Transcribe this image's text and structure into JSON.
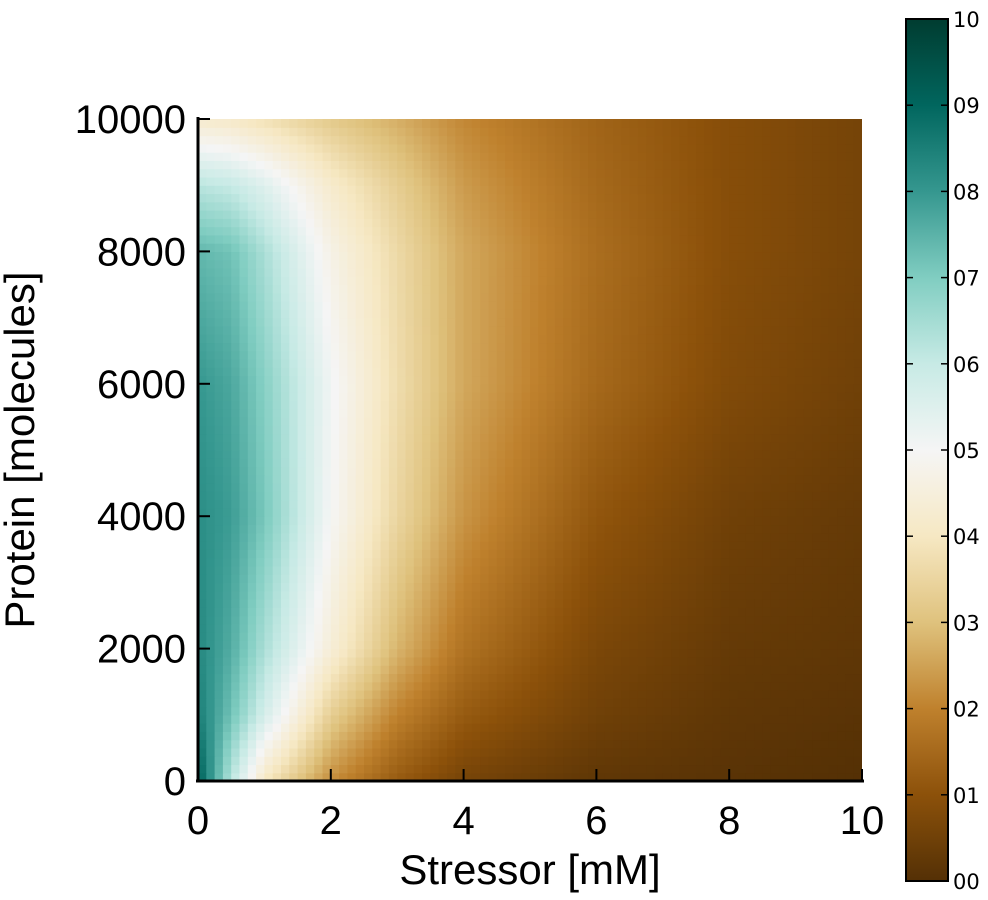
{
  "chart_data": {
    "type": "heatmap",
    "title": "",
    "xlabel": "Stressor [mM]",
    "ylabel": "Protein [molecules]",
    "xlim": [
      0,
      10
    ],
    "ylim": [
      0,
      10000
    ],
    "x_ticks": [
      0,
      2,
      4,
      6,
      8,
      10
    ],
    "y_ticks": [
      0,
      2000,
      4000,
      6000,
      8000,
      10000
    ],
    "x_tick_labels": [
      "0",
      "2",
      "4",
      "6",
      "8",
      "10"
    ],
    "y_tick_labels": [
      "0",
      "2000",
      "4000",
      "6000",
      "8000",
      "10000"
    ],
    "grid": false,
    "colormap": "BrBG",
    "colormap_stops": [
      "#543005",
      "#8c510a",
      "#bf812d",
      "#dfc27d",
      "#f6e8c3",
      "#f5f5f5",
      "#c7eae5",
      "#80cdc1",
      "#35978f",
      "#01665e",
      "#003c30"
    ],
    "colorbar": {
      "position": "right",
      "range": [
        0,
        1
      ],
      "ticks": [
        0,
        0.1,
        0.2,
        0.3,
        0.4,
        0.5,
        0.6,
        0.7,
        0.8,
        0.9,
        1.0
      ],
      "tick_labels": [
        "00",
        "01",
        "02",
        "03",
        "04",
        "05",
        "06",
        "07",
        "08",
        "09",
        "10"
      ]
    },
    "x_samples": [
      0,
      0.5,
      1,
      2,
      3,
      4,
      6,
      8,
      10
    ],
    "y_samples": [
      0,
      1000,
      2000,
      4000,
      6000,
      8000,
      9000,
      10000
    ],
    "z": [
      [
        0.92,
        0.62,
        0.4,
        0.22,
        0.12,
        0.06,
        0.02,
        0.01,
        0.0
      ],
      [
        0.85,
        0.72,
        0.57,
        0.33,
        0.2,
        0.12,
        0.05,
        0.02,
        0.01
      ],
      [
        0.83,
        0.76,
        0.64,
        0.44,
        0.28,
        0.17,
        0.07,
        0.03,
        0.02
      ],
      [
        0.82,
        0.79,
        0.71,
        0.5,
        0.35,
        0.23,
        0.11,
        0.05,
        0.03
      ],
      [
        0.8,
        0.77,
        0.69,
        0.51,
        0.37,
        0.26,
        0.15,
        0.08,
        0.05
      ],
      [
        0.74,
        0.72,
        0.64,
        0.47,
        0.36,
        0.26,
        0.16,
        0.09,
        0.06
      ],
      [
        0.62,
        0.6,
        0.55,
        0.42,
        0.33,
        0.24,
        0.15,
        0.09,
        0.06
      ],
      [
        0.42,
        0.41,
        0.38,
        0.32,
        0.27,
        0.21,
        0.14,
        0.09,
        0.06
      ]
    ]
  }
}
